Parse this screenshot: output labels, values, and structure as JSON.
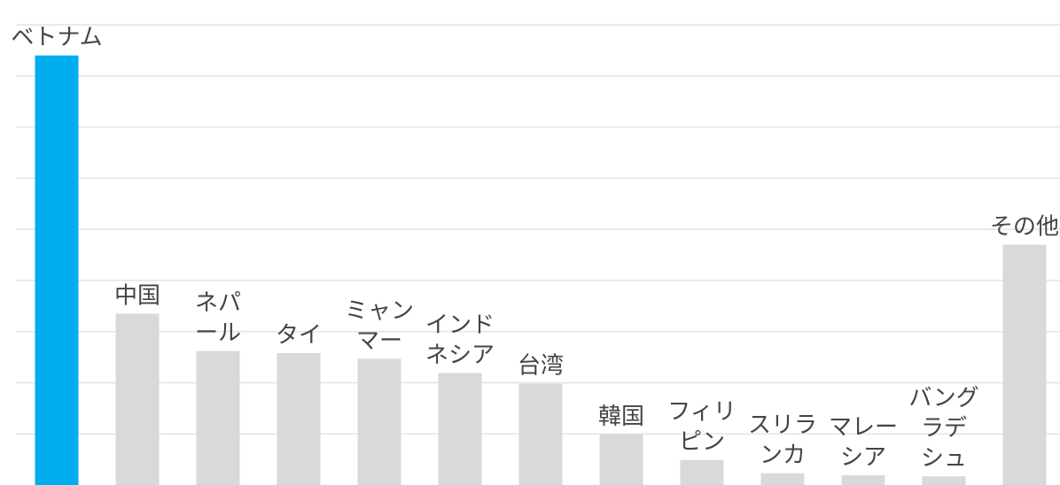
{
  "chart_data": {
    "type": "bar",
    "categories": [
      {
        "lines": [
          "ベトナム"
        ],
        "value": 84.0,
        "highlight": true
      },
      {
        "lines": [
          "中国"
        ],
        "value": 33.5,
        "highlight": false
      },
      {
        "lines": [
          "ネパ",
          "ール"
        ],
        "value": 26.2,
        "highlight": false
      },
      {
        "lines": [
          "タイ"
        ],
        "value": 25.8,
        "highlight": false
      },
      {
        "lines": [
          "ミャン",
          "マー"
        ],
        "value": 24.7,
        "highlight": false
      },
      {
        "lines": [
          "インド",
          "ネシア"
        ],
        "value": 21.9,
        "highlight": false
      },
      {
        "lines": [
          "台湾"
        ],
        "value": 19.8,
        "highlight": false
      },
      {
        "lines": [
          "韓国"
        ],
        "value": 9.9,
        "highlight": false
      },
      {
        "lines": [
          "フィリ",
          "ピン"
        ],
        "value": 4.9,
        "highlight": false
      },
      {
        "lines": [
          "スリラ",
          "ンカ"
        ],
        "value": 2.3,
        "highlight": false
      },
      {
        "lines": [
          "マレー",
          "シア"
        ],
        "value": 1.9,
        "highlight": false
      },
      {
        "lines": [
          "バング",
          "ラデ",
          "シュ"
        ],
        "value": 1.7,
        "highlight": false
      },
      {
        "lines": [
          "その他"
        ],
        "value": 47.0,
        "highlight": false
      }
    ],
    "ylim": [
      0,
      90
    ],
    "grid": true,
    "legend": "none"
  },
  "colors": {
    "highlight": "#00AEEF",
    "bar": "#D9D9D9",
    "grid": "#E4E4E4",
    "label": "#444444"
  }
}
